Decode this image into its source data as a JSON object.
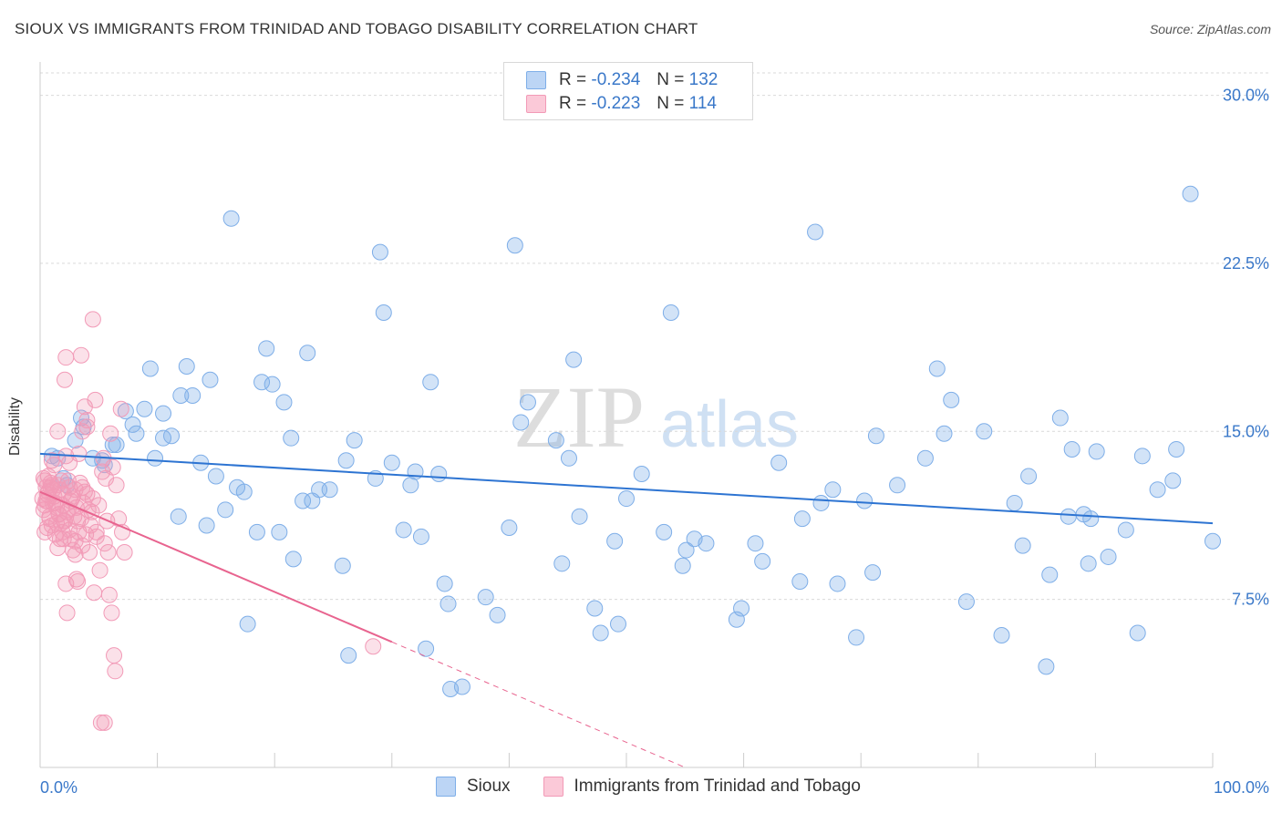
{
  "title": "SIOUX VS IMMIGRANTS FROM TRINIDAD AND TOBAGO DISABILITY CORRELATION CHART",
  "source": "Source: ZipAtlas.com",
  "watermark": {
    "zip": "ZIP",
    "atlas": "atlas"
  },
  "legend": {
    "rows": [
      {
        "r_label": "R =",
        "r_value": "-0.234",
        "n_label": "N =",
        "n_value": "132"
      },
      {
        "r_label": "R =",
        "r_value": "-0.223",
        "n_label": "N =",
        "n_value": "114"
      }
    ]
  },
  "chart_data": {
    "type": "scatter",
    "title": "SIOUX VS IMMIGRANTS FROM TRINIDAD AND TOBAGO DISABILITY CORRELATION CHART",
    "xlabel": "",
    "ylabel": "Disability",
    "xlim": [
      0,
      100
    ],
    "ylim": [
      0,
      31
    ],
    "x_tick_labels": [
      "0.0%",
      "100.0%"
    ],
    "y_ticks": [
      7.5,
      15.0,
      22.5,
      30.0
    ],
    "y_tick_labels": [
      "7.5%",
      "15.0%",
      "22.5%",
      "30.0%"
    ],
    "grid": true,
    "legend_position": "top-center",
    "colors": {
      "sioux": "#7eaee8",
      "sioux_line": "#2d74d2",
      "tt": "#f29ab7",
      "tt_line": "#e8648f",
      "tick_label": "#3a78c9"
    },
    "series": [
      {
        "name": "Sioux",
        "r": -0.234,
        "n": 132,
        "trend": {
          "x": [
            0,
            100
          ],
          "y": [
            14.0,
            10.9
          ]
        },
        "points": [
          [
            1,
            13.9
          ],
          [
            1.5,
            13.8
          ],
          [
            2,
            12.9
          ],
          [
            2.3,
            12.6
          ],
          [
            3,
            14.6
          ],
          [
            3.5,
            15.6
          ],
          [
            3.7,
            15.2
          ],
          [
            4.5,
            13.8
          ],
          [
            5.3,
            13.7
          ],
          [
            5.5,
            13.5
          ],
          [
            6.2,
            14.4
          ],
          [
            6.5,
            14.4
          ],
          [
            7.3,
            15.9
          ],
          [
            7.9,
            15.3
          ],
          [
            8.2,
            14.9
          ],
          [
            8.9,
            16.0
          ],
          [
            9.4,
            17.8
          ],
          [
            9.8,
            13.8
          ],
          [
            10.5,
            14.7
          ],
          [
            10.5,
            15.8
          ],
          [
            11.2,
            14.8
          ],
          [
            11.8,
            11.2
          ],
          [
            12.0,
            16.6
          ],
          [
            12.5,
            17.9
          ],
          [
            13.0,
            16.6
          ],
          [
            13.7,
            13.6
          ],
          [
            14.2,
            10.8
          ],
          [
            14.5,
            17.3
          ],
          [
            15.0,
            13.0
          ],
          [
            15.8,
            11.5
          ],
          [
            16.3,
            24.5
          ],
          [
            16.8,
            12.5
          ],
          [
            17.4,
            12.3
          ],
          [
            17.7,
            6.4
          ],
          [
            18.5,
            10.5
          ],
          [
            18.9,
            17.2
          ],
          [
            19.3,
            18.7
          ],
          [
            19.8,
            17.1
          ],
          [
            20.4,
            10.5
          ],
          [
            20.8,
            16.3
          ],
          [
            21.4,
            14.7
          ],
          [
            21.6,
            9.3
          ],
          [
            22.4,
            11.9
          ],
          [
            22.8,
            18.5
          ],
          [
            23.2,
            11.9
          ],
          [
            23.8,
            12.4
          ],
          [
            24.7,
            12.4
          ],
          [
            25.8,
            9.0
          ],
          [
            26.1,
            13.7
          ],
          [
            26.3,
            5.0
          ],
          [
            26.8,
            14.6
          ],
          [
            28.6,
            12.9
          ],
          [
            29.0,
            23.0
          ],
          [
            29.3,
            20.3
          ],
          [
            30.0,
            13.6
          ],
          [
            31.0,
            10.6
          ],
          [
            31.6,
            12.6
          ],
          [
            32.0,
            13.2
          ],
          [
            32.5,
            10.3
          ],
          [
            32.9,
            5.3
          ],
          [
            33.3,
            17.2
          ],
          [
            34.0,
            13.1
          ],
          [
            34.5,
            8.2
          ],
          [
            34.8,
            7.3
          ],
          [
            35.0,
            3.5
          ],
          [
            36.0,
            3.6
          ],
          [
            38.0,
            7.6
          ],
          [
            39.0,
            6.8
          ],
          [
            40.0,
            10.7
          ],
          [
            40.5,
            23.3
          ],
          [
            41.0,
            15.4
          ],
          [
            41.6,
            16.3
          ],
          [
            44.0,
            14.6
          ],
          [
            44.5,
            9.1
          ],
          [
            45.1,
            13.8
          ],
          [
            45.5,
            18.2
          ],
          [
            46.0,
            11.2
          ],
          [
            47.3,
            7.1
          ],
          [
            47.8,
            6.0
          ],
          [
            49.0,
            10.1
          ],
          [
            49.3,
            6.4
          ],
          [
            50.0,
            12.0
          ],
          [
            51.3,
            13.1
          ],
          [
            53.2,
            10.5
          ],
          [
            53.8,
            20.3
          ],
          [
            54.8,
            9.0
          ],
          [
            55.1,
            9.7
          ],
          [
            55.8,
            10.2
          ],
          [
            56.8,
            10.0
          ],
          [
            59.4,
            6.6
          ],
          [
            59.8,
            7.1
          ],
          [
            61.0,
            10.0
          ],
          [
            61.6,
            9.2
          ],
          [
            63.0,
            13.6
          ],
          [
            64.8,
            8.3
          ],
          [
            65.0,
            11.1
          ],
          [
            66.1,
            23.9
          ],
          [
            66.6,
            11.8
          ],
          [
            67.6,
            12.4
          ],
          [
            68.0,
            8.2
          ],
          [
            69.6,
            5.8
          ],
          [
            70.3,
            11.9
          ],
          [
            71.0,
            8.7
          ],
          [
            71.3,
            14.8
          ],
          [
            73.1,
            12.6
          ],
          [
            75.5,
            13.8
          ],
          [
            76.5,
            17.8
          ],
          [
            77.1,
            14.9
          ],
          [
            77.7,
            16.4
          ],
          [
            79.0,
            7.4
          ],
          [
            80.5,
            15.0
          ],
          [
            82.0,
            5.9
          ],
          [
            83.1,
            11.8
          ],
          [
            83.8,
            9.9
          ],
          [
            84.3,
            13.0
          ],
          [
            85.8,
            4.5
          ],
          [
            86.1,
            8.6
          ],
          [
            87.0,
            15.6
          ],
          [
            87.7,
            11.2
          ],
          [
            88.0,
            14.2
          ],
          [
            89.0,
            11.3
          ],
          [
            89.4,
            9.1
          ],
          [
            89.6,
            11.1
          ],
          [
            90.1,
            14.1
          ],
          [
            91.1,
            9.4
          ],
          [
            92.6,
            10.6
          ],
          [
            93.6,
            6.0
          ],
          [
            94.0,
            13.9
          ],
          [
            95.3,
            12.4
          ],
          [
            96.6,
            12.8
          ],
          [
            96.9,
            14.2
          ],
          [
            98.1,
            25.6
          ],
          [
            100,
            10.1
          ]
        ]
      },
      {
        "name": "Immigrants from Trinidad and Tobago",
        "r": -0.223,
        "n": 114,
        "trend": {
          "x": [
            0,
            30
          ],
          "y": [
            12.3,
            5.6
          ]
        },
        "trend_dashed": {
          "x": [
            30,
            55
          ],
          "y": [
            5.6,
            0.0
          ]
        },
        "points": [
          [
            0.2,
            12.0
          ],
          [
            0.3,
            11.5
          ],
          [
            0.4,
            12.8
          ],
          [
            0.5,
            11.9
          ],
          [
            0.6,
            10.7
          ],
          [
            0.7,
            12.3
          ],
          [
            0.8,
            11.2
          ],
          [
            0.9,
            12.5
          ],
          [
            1.0,
            10.8
          ],
          [
            1.0,
            13.7
          ],
          [
            1.1,
            11.8
          ],
          [
            1.2,
            12.1
          ],
          [
            1.3,
            10.4
          ],
          [
            1.4,
            11.6
          ],
          [
            1.5,
            12.6
          ],
          [
            1.5,
            15.0
          ],
          [
            1.6,
            11.3
          ],
          [
            1.7,
            12.4
          ],
          [
            1.8,
            10.9
          ],
          [
            1.9,
            11.7
          ],
          [
            2.0,
            12.2
          ],
          [
            2.0,
            10.2
          ],
          [
            2.1,
            11.0
          ],
          [
            2.2,
            13.9
          ],
          [
            2.3,
            11.4
          ],
          [
            2.4,
            12.8
          ],
          [
            2.5,
            10.6
          ],
          [
            2.6,
            11.9
          ],
          [
            2.7,
            12.0
          ],
          [
            2.8,
            9.7
          ],
          [
            2.9,
            11.2
          ],
          [
            3.0,
            12.4
          ],
          [
            3.0,
            10.1
          ],
          [
            3.1,
            11.6
          ],
          [
            3.2,
            8.3
          ],
          [
            3.3,
            10.5
          ],
          [
            3.4,
            12.7
          ],
          [
            3.5,
            11.1
          ],
          [
            3.6,
            9.9
          ],
          [
            3.7,
            11.8
          ],
          [
            3.8,
            12.3
          ],
          [
            3.9,
            10.4
          ],
          [
            4.0,
            15.2
          ],
          [
            4.1,
            11.5
          ],
          [
            4.2,
            9.6
          ],
          [
            4.3,
            10.8
          ],
          [
            4.5,
            12.0
          ],
          [
            4.6,
            7.8
          ],
          [
            4.8,
            10.3
          ],
          [
            5.0,
            11.7
          ],
          [
            5.1,
            8.8
          ],
          [
            5.3,
            13.2
          ],
          [
            5.5,
            10.0
          ],
          [
            2.2,
            18.3
          ],
          [
            2.1,
            17.3
          ],
          [
            3.5,
            18.4
          ],
          [
            4.5,
            20.0
          ],
          [
            3.8,
            16.1
          ],
          [
            4.0,
            15.5
          ],
          [
            4.7,
            16.4
          ],
          [
            3.6,
            15.0
          ],
          [
            2.5,
            13.6
          ],
          [
            3.3,
            14.0
          ],
          [
            5.4,
            13.8
          ],
          [
            5.6,
            12.9
          ],
          [
            5.7,
            11.0
          ],
          [
            5.8,
            9.6
          ],
          [
            6.0,
            14.9
          ],
          [
            6.2,
            13.4
          ],
          [
            6.5,
            12.6
          ],
          [
            6.7,
            11.1
          ],
          [
            7.0,
            10.5
          ],
          [
            7.2,
            9.6
          ],
          [
            6.9,
            16.0
          ],
          [
            6.4,
            4.3
          ],
          [
            6.1,
            6.9
          ],
          [
            5.9,
            7.7
          ],
          [
            2.3,
            6.9
          ],
          [
            2.2,
            8.2
          ],
          [
            3.1,
            8.4
          ],
          [
            3.0,
            9.5
          ],
          [
            2.6,
            10.2
          ],
          [
            2.5,
            12.5
          ],
          [
            1.9,
            10.5
          ],
          [
            1.7,
            10.2
          ],
          [
            1.5,
            9.8
          ],
          [
            1.3,
            11.8
          ],
          [
            1.1,
            12.4
          ],
          [
            0.9,
            12.7
          ],
          [
            0.8,
            11.1
          ],
          [
            0.7,
            13.0
          ],
          [
            0.6,
            12.2
          ],
          [
            0.5,
            12.5
          ],
          [
            0.4,
            11.7
          ],
          [
            0.3,
            12.9
          ],
          [
            0.4,
            10.5
          ],
          [
            0.6,
            11.9
          ],
          [
            1.0,
            12.6
          ],
          [
            1.2,
            13.5
          ],
          [
            1.4,
            10.9
          ],
          [
            1.6,
            11.3
          ],
          [
            1.8,
            12.8
          ],
          [
            2.0,
            11.0
          ],
          [
            2.4,
            11.5
          ],
          [
            2.8,
            12.1
          ],
          [
            3.2,
            11.0
          ],
          [
            3.6,
            12.5
          ],
          [
            4.0,
            12.2
          ],
          [
            4.4,
            11.4
          ],
          [
            5.2,
            2.0
          ],
          [
            5.5,
            2.0
          ],
          [
            6.3,
            5.0
          ],
          [
            28.4,
            5.4
          ],
          [
            4.8,
            10.5
          ]
        ]
      }
    ]
  }
}
